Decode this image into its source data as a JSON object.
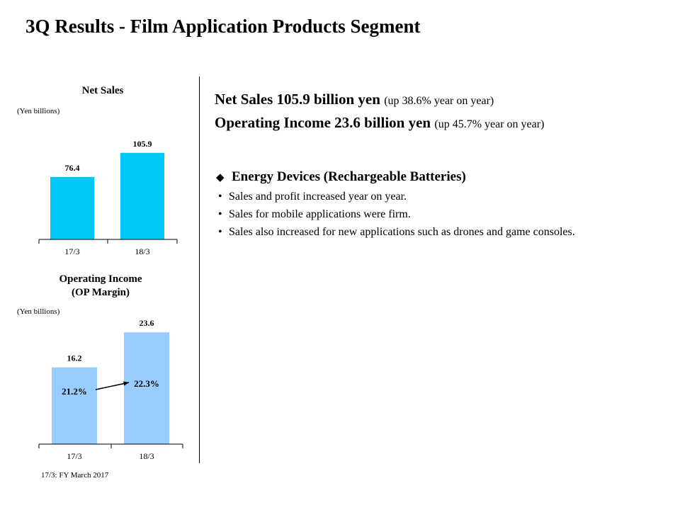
{
  "title": "3Q Results - Film Application Products Segment",
  "headlines": [
    {
      "main": "Net Sales 105.9 billion yen",
      "note": "(up 38.6% year on year)"
    },
    {
      "main": "Operating Income 23.6 billion yen",
      "note": "(up 45.7% year on year)"
    }
  ],
  "section": {
    "marker": "◆",
    "title": "Energy Devices (Rechargeable Batteries)",
    "bullet_marker": "•",
    "bullets": [
      "Sales and profit increased year on year.",
      "Sales for mobile applications were firm.",
      "Sales also increased for new applications such as drones and game consoles."
    ]
  },
  "footnote": "17/3: FY March 2017",
  "colors": {
    "net_sales_bar": "#00c8f8",
    "op_income_bar": "#99ccff"
  },
  "chart_data": [
    {
      "type": "bar",
      "title": "Net Sales",
      "unit": "(Yen billions)",
      "categories": [
        "17/3",
        "18/3"
      ],
      "values": [
        76.4,
        105.9
      ],
      "value_labels": [
        "76.4",
        "105.9"
      ],
      "ylim": [
        0,
        120
      ],
      "grid": false,
      "color": "#00c8f8"
    },
    {
      "type": "bar",
      "title": [
        "Operating Income",
        "(OP Margin)"
      ],
      "unit": "(Yen billions)",
      "categories": [
        "17/3",
        "18/3"
      ],
      "values": [
        16.2,
        23.6
      ],
      "value_labels": [
        "16.2",
        "23.6"
      ],
      "margins": [
        "21.2%",
        "22.3%"
      ],
      "ylim": [
        0,
        28
      ],
      "grid": false,
      "color": "#99ccff"
    }
  ]
}
